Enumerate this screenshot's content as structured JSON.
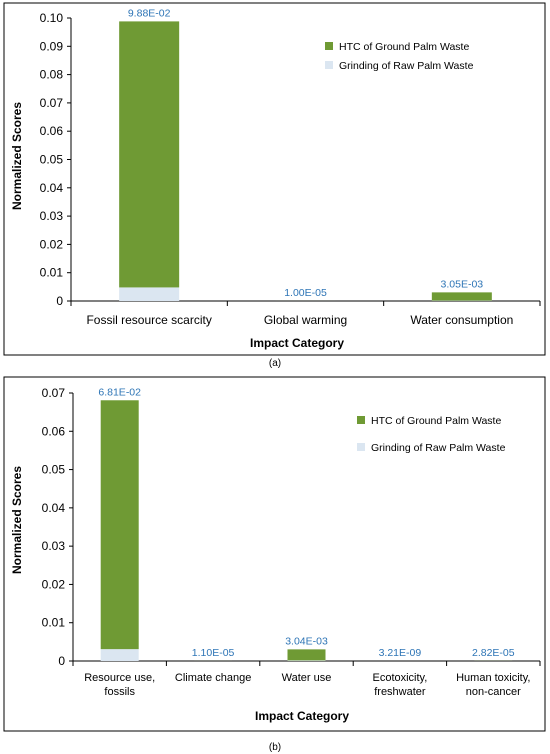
{
  "colors": {
    "htc": "#6f9a34",
    "grinding": "#dbe6f1",
    "data_label": "#2e75b6",
    "frame": "#000000"
  },
  "chart_data": [
    {
      "type": "bar",
      "stacked": true,
      "panel_label": "(a)",
      "xlabel": "Impact Category",
      "ylabel": "Normalized Scores",
      "ylim": [
        0,
        0.1
      ],
      "yticks": [
        0,
        0.01,
        0.02,
        0.03,
        0.04,
        0.05,
        0.06,
        0.07,
        0.08,
        0.09,
        0.1
      ],
      "ytick_labels": [
        "0",
        "0.01",
        "0.02",
        "0.03",
        "0.04",
        "0.05",
        "0.06",
        "0.07",
        "0.08",
        "0.09",
        "0.10"
      ],
      "categories": [
        [
          "Fossil resource scarcity"
        ],
        [
          "Global warming"
        ],
        [
          "Water consumption"
        ]
      ],
      "series": [
        {
          "name": "Grinding of Raw Palm Waste",
          "values": [
            0.0048,
            5e-07,
            0.00015
          ]
        },
        {
          "name": "HTC of Ground Palm Waste",
          "values": [
            0.094,
            9.5e-06,
            0.0029
          ]
        }
      ],
      "totals": [
        "9.88E-02",
        "1.00E-05",
        "3.05E-03"
      ],
      "legend": [
        "HTC of Ground Palm Waste",
        "Grinding of Raw Palm Waste"
      ],
      "legend_position": "top-right",
      "grid": false
    },
    {
      "type": "bar",
      "stacked": true,
      "panel_label": "(b)",
      "xlabel": "Impact Category",
      "ylabel": "Normalized Scores",
      "ylim": [
        0,
        0.07
      ],
      "yticks": [
        0,
        0.01,
        0.02,
        0.03,
        0.04,
        0.05,
        0.06,
        0.07
      ],
      "ytick_labels": [
        "0",
        "0.01",
        "0.02",
        "0.03",
        "0.04",
        "0.05",
        "0.06",
        "0.07"
      ],
      "categories": [
        [
          "Resource use,",
          "fossils"
        ],
        [
          "Climate change"
        ],
        [
          "Water use"
        ],
        [
          "Ecotoxicity,",
          "freshwater"
        ],
        [
          "Human toxicity,",
          "non-cancer"
        ]
      ],
      "series": [
        {
          "name": "Grinding of Raw Palm Waste",
          "values": [
            0.0031,
            5e-07,
            0.00015,
            2e-10,
            1.4e-06
          ]
        },
        {
          "name": "HTC of Ground Palm Waste",
          "values": [
            0.065,
            1.05e-05,
            0.00289,
            3e-09,
            2.68e-05
          ]
        }
      ],
      "totals": [
        "6.81E-02",
        "1.10E-05",
        "3.04E-03",
        "3.21E-09",
        "2.82E-05"
      ],
      "legend": [
        "HTC of Ground Palm Waste",
        "Grinding of Raw Palm Waste"
      ],
      "legend_position": "top-right",
      "grid": false
    }
  ]
}
